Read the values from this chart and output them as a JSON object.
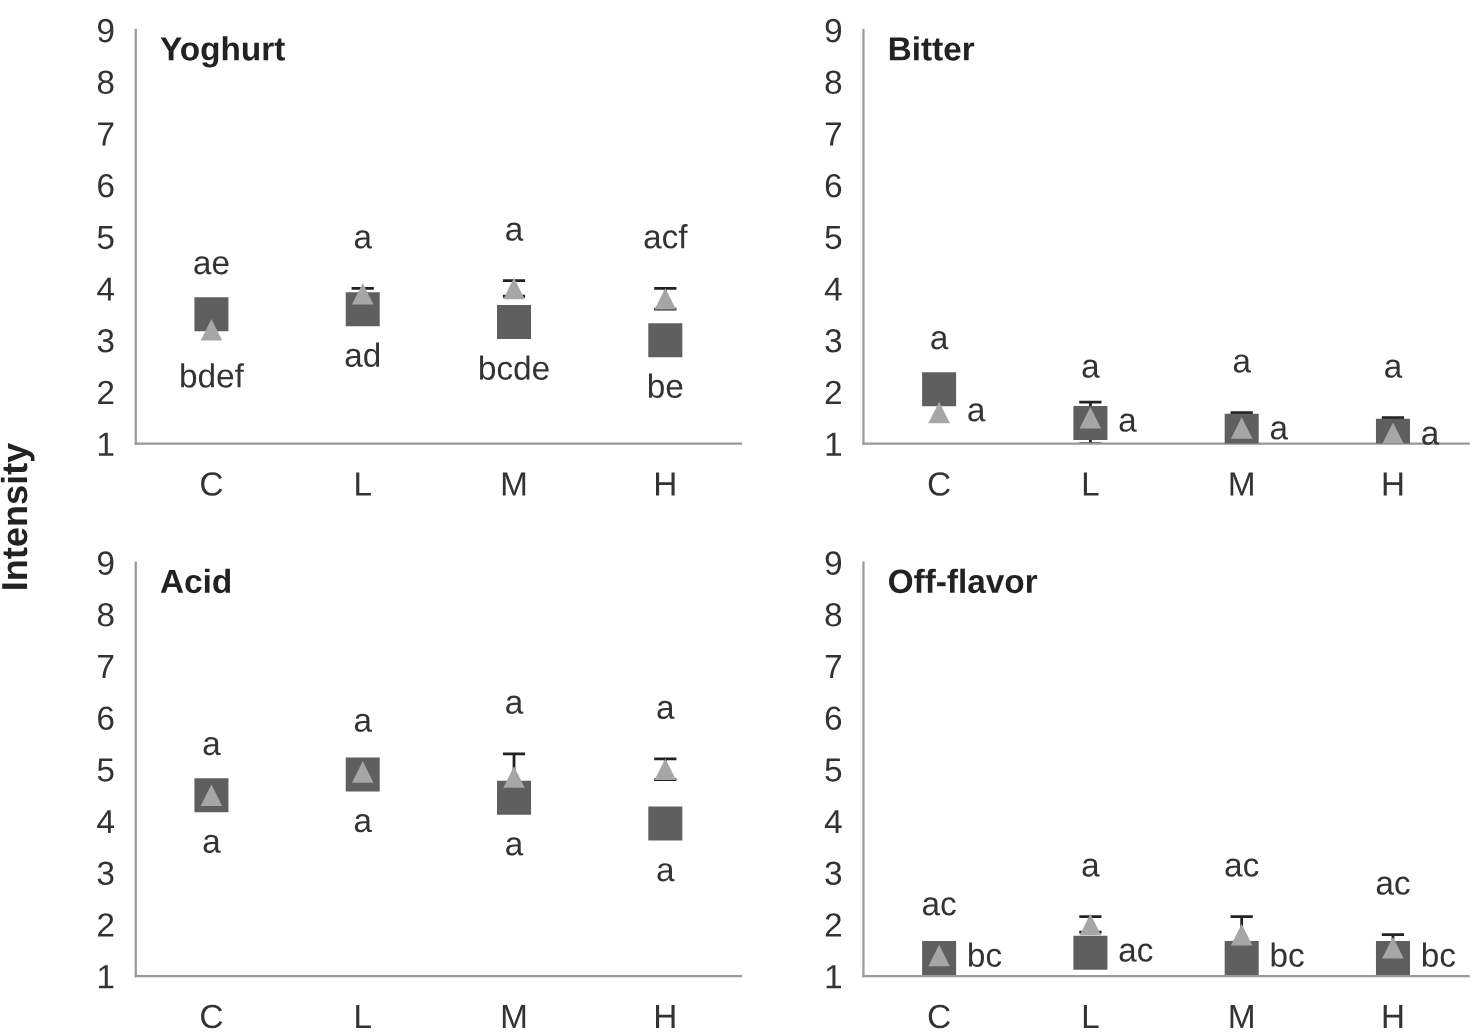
{
  "chart_data": [
    {
      "type": "scatter",
      "title": "Yoghurt",
      "ylabel": "Intensity",
      "categories": [
        "C",
        "L",
        "M",
        "H"
      ],
      "ylim": [
        1,
        9
      ],
      "yticks": [
        1,
        2,
        3,
        4,
        5,
        6,
        7,
        8,
        9
      ],
      "grid": false,
      "series": [
        {
          "color": "#5f5f5f",
          "marker": "square",
          "values": [
            3.5,
            3.6,
            3.35,
            3.0
          ],
          "errors": [
            null,
            null,
            null,
            null
          ],
          "value_labels": [
            "ae",
            "ad",
            "bcde",
            "be"
          ]
        },
        {
          "color": "#a6a6a6",
          "marker": "triangle",
          "values": [
            3.2,
            3.9,
            4.0,
            3.8
          ],
          "errors": [
            null,
            0.1,
            0.15,
            0.2
          ],
          "value_labels": [
            "bdef",
            "a",
            "a",
            "acf"
          ]
        }
      ]
    },
    {
      "type": "scatter",
      "title": "Bitter",
      "categories": [
        "C",
        "L",
        "M",
        "H"
      ],
      "ylim": [
        1,
        9
      ],
      "yticks": [
        1,
        2,
        3,
        4,
        5,
        6,
        7,
        8,
        9
      ],
      "grid": false,
      "series": [
        {
          "color": "#5f5f5f",
          "marker": "square",
          "values": [
            2.05,
            1.4,
            1.25,
            1.15
          ],
          "errors": [
            null,
            0.4,
            null,
            null
          ],
          "value_labels": [
            "a",
            "a",
            "a",
            "a"
          ]
        },
        {
          "color": "#a6a6a6",
          "marker": "triangle",
          "values": [
            1.6,
            1.5,
            1.3,
            1.2
          ],
          "errors": [
            null,
            null,
            0.3,
            0.3
          ],
          "value_labels": [
            "a",
            "a",
            "a",
            "a"
          ]
        }
      ]
    },
    {
      "type": "scatter",
      "title": "Acid",
      "categories": [
        "C",
        "L",
        "M",
        "H"
      ],
      "ylim": [
        1,
        9
      ],
      "yticks": [
        1,
        2,
        3,
        4,
        5,
        6,
        7,
        8,
        9
      ],
      "grid": false,
      "series": [
        {
          "color": "#5f5f5f",
          "marker": "square",
          "values": [
            4.5,
            4.9,
            4.45,
            3.95
          ],
          "errors": [
            null,
            null,
            null,
            null
          ],
          "value_labels": [
            "a",
            "a",
            "a",
            "a"
          ]
        },
        {
          "color": "#a6a6a6",
          "marker": "triangle",
          "values": [
            4.5,
            4.95,
            4.85,
            5.0
          ],
          "errors": [
            null,
            null,
            0.45,
            0.2
          ],
          "value_labels": [
            "a",
            "a",
            "a",
            "a"
          ]
        }
      ]
    },
    {
      "type": "scatter",
      "title": "Off-flavor",
      "categories": [
        "C",
        "L",
        "M",
        "H"
      ],
      "ylim": [
        1,
        9
      ],
      "yticks": [
        1,
        2,
        3,
        4,
        5,
        6,
        7,
        8,
        9
      ],
      "grid": false,
      "series": [
        {
          "color": "#5f5f5f",
          "marker": "square",
          "values": [
            1.35,
            1.45,
            1.35,
            1.35
          ],
          "errors": [
            null,
            null,
            null,
            null
          ],
          "value_labels": [
            "bc",
            "ac",
            "bc",
            "bc"
          ]
        },
        {
          "color": "#a6a6a6",
          "marker": "triangle",
          "values": [
            1.4,
            2.0,
            1.8,
            1.55
          ],
          "errors": [
            null,
            0.15,
            0.35,
            0.25
          ],
          "value_labels": [
            "ac",
            "a",
            "ac",
            "ac"
          ]
        }
      ]
    }
  ]
}
